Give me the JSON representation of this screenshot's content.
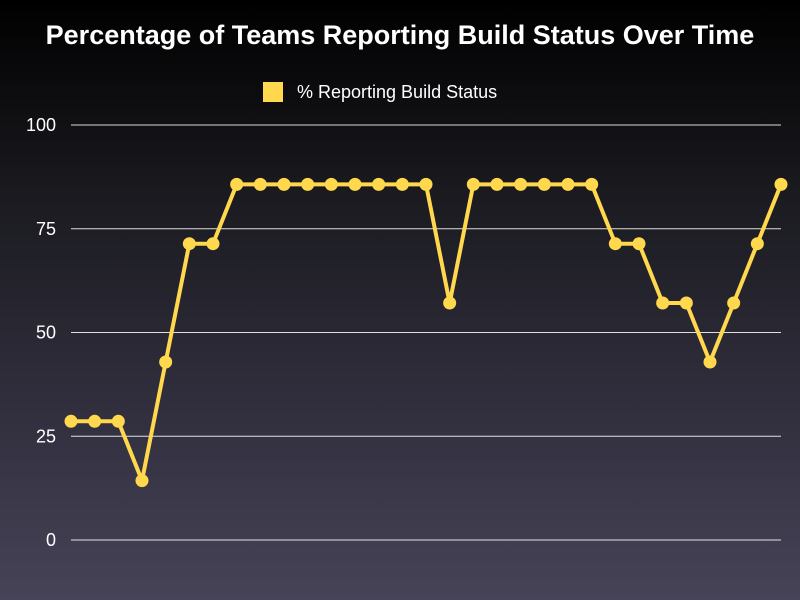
{
  "chart_data": {
    "type": "line",
    "title": "Percentage of Teams Reporting Build Status Over Time",
    "xlabel": "",
    "ylabel": "",
    "ylim": [
      0,
      100
    ],
    "yticks": [
      "0",
      "25",
      "50",
      "75",
      "100"
    ],
    "grid": true,
    "legend_position": "top-center",
    "series": [
      {
        "name": "% Reporting Build Status",
        "color": "#ffd84d",
        "values": [
          28.6,
          28.6,
          28.6,
          14.3,
          42.9,
          71.4,
          71.4,
          85.7,
          85.7,
          85.7,
          85.7,
          85.7,
          85.7,
          85.7,
          85.7,
          85.7,
          57.1,
          85.7,
          85.7,
          85.7,
          85.7,
          85.7,
          85.7,
          71.4,
          71.4,
          57.1,
          57.1,
          42.9,
          57.1,
          71.4,
          85.7
        ]
      }
    ]
  },
  "colors": {
    "line": "#ffd84d",
    "grid": "#ffffff",
    "text": "#ffffff"
  }
}
